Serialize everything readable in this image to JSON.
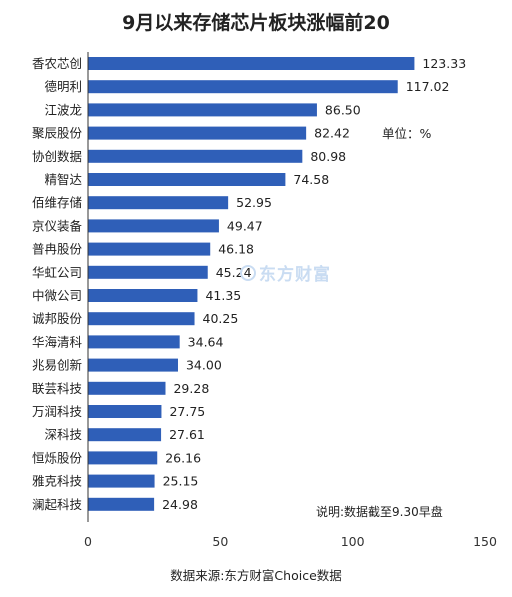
{
  "chart_data": {
    "type": "bar",
    "orientation": "horizontal",
    "title": "9月以来存储芯片板块涨幅前20",
    "categories": [
      "香农芯创",
      "德明利",
      "江波龙",
      "聚辰股份",
      "协创数据",
      "精智达",
      "佰维存储",
      "京仪装备",
      "普冉股份",
      "华虹公司",
      "中微公司",
      "诚邦股份",
      "华海清科",
      "兆易创新",
      "联芸科技",
      "万润科技",
      "深科技",
      "恒烁股份",
      "雅克科技",
      "澜起科技"
    ],
    "values": [
      123.33,
      117.02,
      86.5,
      82.42,
      80.98,
      74.58,
      52.95,
      49.47,
      46.18,
      45.24,
      41.35,
      40.25,
      34.64,
      34.0,
      29.28,
      27.75,
      27.61,
      26.16,
      25.15,
      24.98
    ],
    "value_labels": [
      "123.33",
      "117.02",
      "86.50",
      "82.42",
      "80.98",
      "74.58",
      "52.95",
      "49.47",
      "46.18",
      "45.24",
      "41.35",
      "40.25",
      "34.64",
      "34.00",
      "29.28",
      "27.75",
      "27.61",
      "26.16",
      "25.15",
      "24.98"
    ],
    "xlim": [
      0,
      150
    ],
    "x_ticks": [
      0,
      50,
      100,
      150
    ],
    "grid": false,
    "bar_color": "#2f5fb8",
    "unit_note": "单位：%",
    "date_note": "说明:数据截至9.30早盘",
    "source": "数据来源:东方财富Choice数据",
    "watermark": "东方财富"
  }
}
